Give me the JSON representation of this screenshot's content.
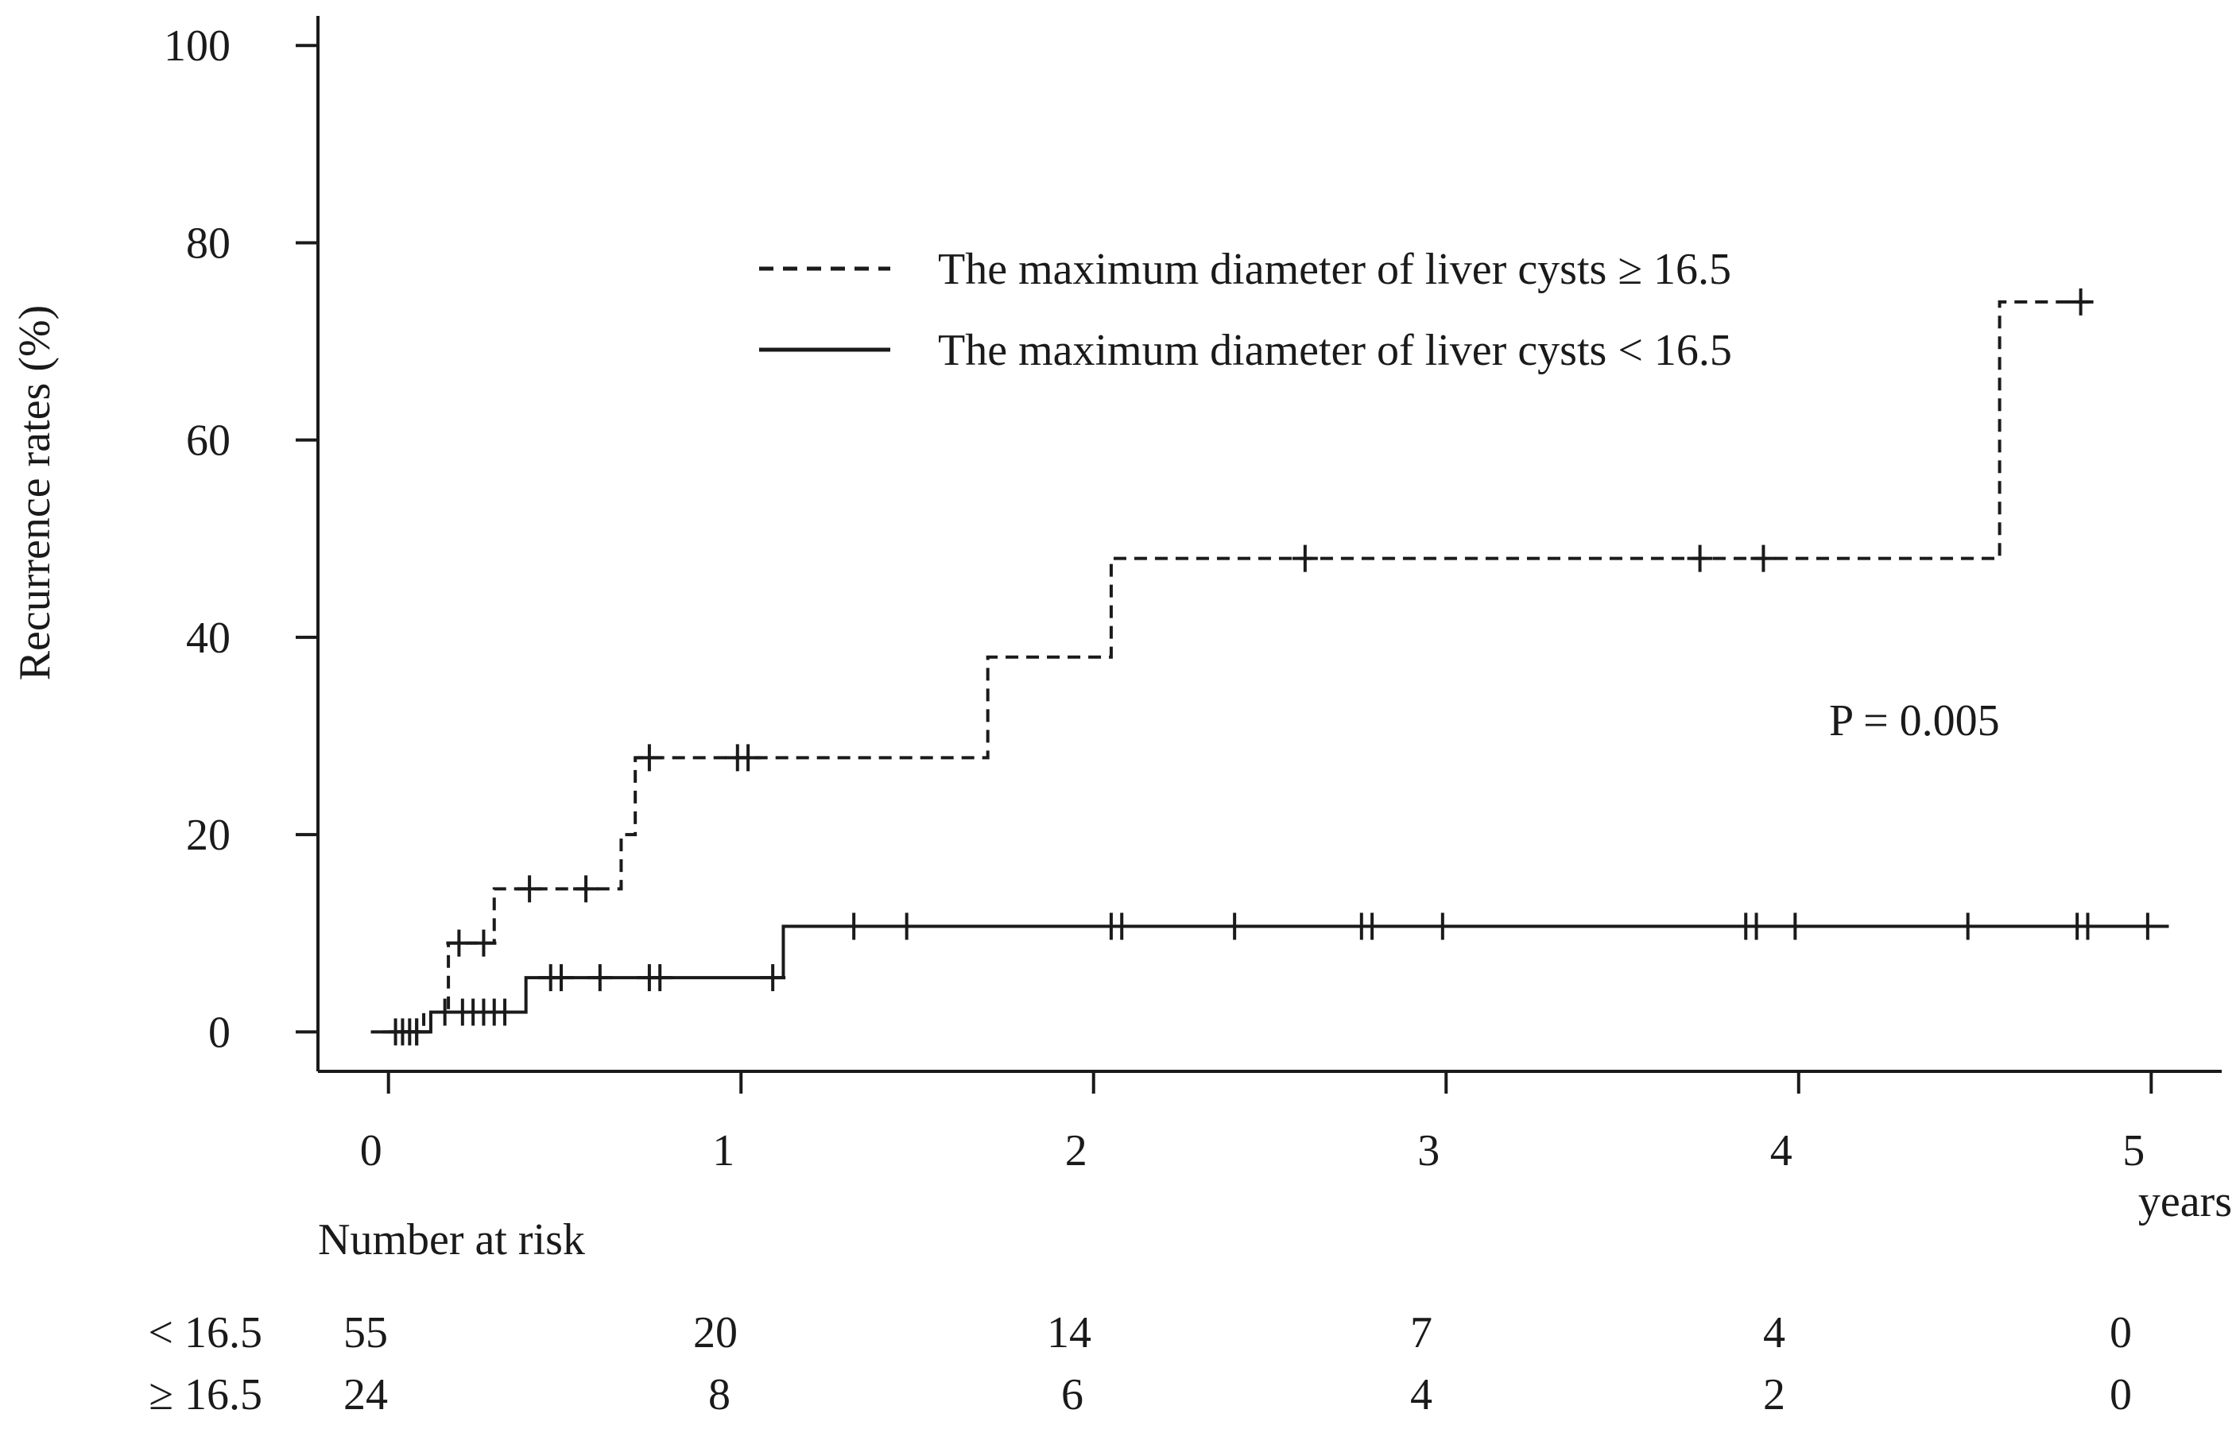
{
  "colors": {
    "ink": "#1a1a1a",
    "background": "#ffffff"
  },
  "chart_data": {
    "type": "line",
    "subtype": "kaplan-meier-cumulative-incidence",
    "title": "",
    "ylabel": "Recurrence rates (%)",
    "xlabel": "years",
    "xlim": [
      -0.2,
      5.2
    ],
    "ylim": [
      -4,
      103
    ],
    "x_ticks": [
      0,
      1,
      2,
      3,
      4,
      5
    ],
    "y_ticks": [
      0,
      20,
      40,
      60,
      80,
      100
    ],
    "x_tick_labels": [
      "0",
      "1",
      "2",
      "3",
      "4",
      "5"
    ],
    "y_tick_labels": [
      "0",
      "20",
      "40",
      "60",
      "80",
      "100"
    ],
    "grid": false,
    "legend_position": "top-center",
    "annotation": "P = 0.005",
    "series": [
      {
        "name": "The maximum diameter of liver cysts ≥ 16.5",
        "style": "dashed",
        "steps": [
          [
            0,
            0
          ],
          [
            0.1,
            2
          ],
          [
            0.17,
            9
          ],
          [
            0.3,
            14.5
          ],
          [
            0.66,
            20
          ],
          [
            0.7,
            27.8
          ],
          [
            1.7,
            38
          ],
          [
            2.05,
            48
          ],
          [
            4.57,
            74
          ],
          [
            4.84,
            74
          ]
        ],
        "censored": [
          [
            0.08,
            0
          ],
          [
            0.2,
            9
          ],
          [
            0.27,
            9
          ],
          [
            0.4,
            14.5
          ],
          [
            0.56,
            14.5
          ],
          [
            0.74,
            27.8
          ],
          [
            0.99,
            27.8
          ],
          [
            1.02,
            27.8
          ],
          [
            2.6,
            48
          ],
          [
            3.72,
            48
          ],
          [
            3.9,
            48
          ],
          [
            4.8,
            74
          ]
        ]
      },
      {
        "name": "The maximum diameter of liver cysts < 16.5",
        "style": "solid",
        "steps": [
          [
            -0.05,
            0
          ],
          [
            0.12,
            2
          ],
          [
            0.39,
            5.5
          ],
          [
            1.12,
            10.7
          ],
          [
            5.05,
            10.7
          ]
        ],
        "censored": [
          [
            0.02,
            0
          ],
          [
            0.04,
            0
          ],
          [
            0.06,
            0
          ],
          [
            0.08,
            0
          ],
          [
            0.16,
            2
          ],
          [
            0.21,
            2
          ],
          [
            0.24,
            2
          ],
          [
            0.27,
            2
          ],
          [
            0.3,
            2
          ],
          [
            0.33,
            2
          ],
          [
            0.46,
            5.5
          ],
          [
            0.49,
            5.5
          ],
          [
            0.6,
            5.5
          ],
          [
            0.74,
            5.5
          ],
          [
            0.77,
            5.5
          ],
          [
            1.09,
            5.5
          ],
          [
            1.32,
            10.7
          ],
          [
            1.47,
            10.7
          ],
          [
            2.05,
            10.7
          ],
          [
            2.08,
            10.7
          ],
          [
            2.4,
            10.7
          ],
          [
            2.76,
            10.7
          ],
          [
            2.79,
            10.7
          ],
          [
            2.99,
            10.7
          ],
          [
            3.85,
            10.7
          ],
          [
            3.88,
            10.7
          ],
          [
            3.99,
            10.7
          ],
          [
            4.48,
            10.7
          ],
          [
            4.79,
            10.7
          ],
          [
            4.82,
            10.7
          ],
          [
            4.99,
            10.7
          ]
        ]
      }
    ],
    "number_at_risk": {
      "title": "Number at risk",
      "rows": [
        {
          "label": "< 16.5",
          "values": [
            "55",
            "20",
            "14",
            "7",
            "4",
            "0"
          ]
        },
        {
          "label": "≥ 16.5",
          "values": [
            "24",
            "8",
            "6",
            "4",
            "2",
            "0"
          ]
        }
      ]
    }
  }
}
